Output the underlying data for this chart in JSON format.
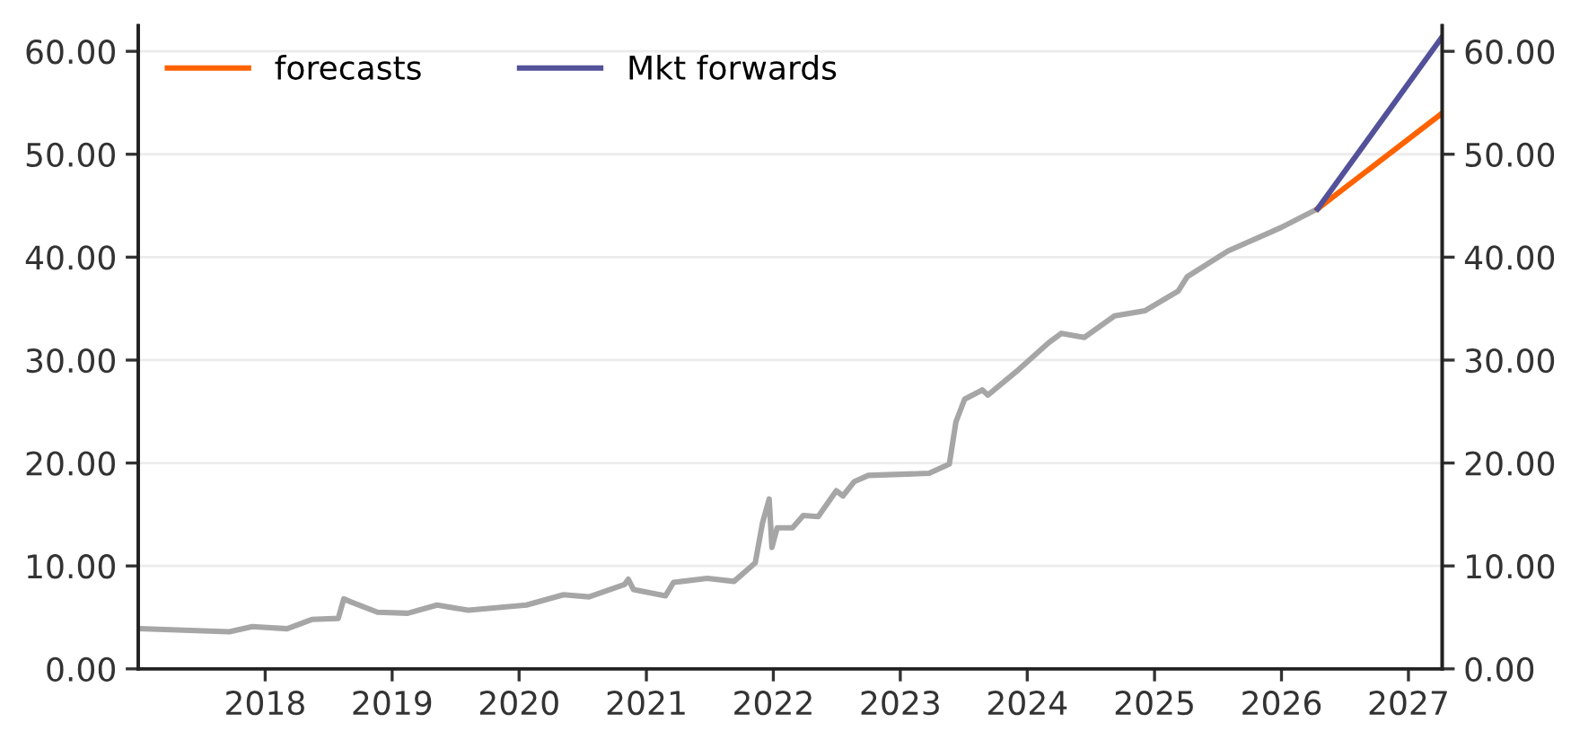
{
  "chart_data": {
    "type": "line",
    "xlim": [
      "2017-01-01",
      "2027-04-08"
    ],
    "xticks": [
      {
        "value": "2018-01-01",
        "label": "2018"
      },
      {
        "value": "2019-01-01",
        "label": "2019"
      },
      {
        "value": "2020-01-01",
        "label": "2020"
      },
      {
        "value": "2021-01-01",
        "label": "2021"
      },
      {
        "value": "2022-01-01",
        "label": "2022"
      },
      {
        "value": "2023-01-01",
        "label": "2023"
      },
      {
        "value": "2024-01-01",
        "label": "2024"
      },
      {
        "value": "2025-01-01",
        "label": "2025"
      },
      {
        "value": "2026-01-01",
        "label": "2026"
      },
      {
        "value": "2027-01-01",
        "label": "2027"
      }
    ],
    "ylim": [
      0,
      62.5
    ],
    "yticks": [
      {
        "value": 0,
        "label": "0.00"
      },
      {
        "value": 10,
        "label": "10.00"
      },
      {
        "value": 20,
        "label": "20.00"
      },
      {
        "value": 30,
        "label": "30.00"
      },
      {
        "value": 40,
        "label": "40.00"
      },
      {
        "value": 50,
        "label": "50.00"
      },
      {
        "value": 60,
        "label": "60.00"
      }
    ],
    "y2lim": [
      0,
      62.5
    ],
    "y2ticks": [
      {
        "value": 0,
        "label": "0.00"
      },
      {
        "value": 10,
        "label": "10.00"
      },
      {
        "value": 20,
        "label": "20.00"
      },
      {
        "value": 30,
        "label": "30.00"
      },
      {
        "value": 40,
        "label": "40.00"
      },
      {
        "value": 50,
        "label": "50.00"
      },
      {
        "value": 60,
        "label": "60.00"
      }
    ],
    "grid": "y",
    "legend": "top left",
    "series": [
      {
        "color": "#a6a6a6",
        "x": [
          "2017-01-05",
          "2017-09-20",
          "2017-11-25",
          "2018-03-05",
          "2018-05-15",
          "2018-07-30",
          "2018-08-15",
          "2018-09-05",
          "2018-11-20",
          "2019-02-15",
          "2019-05-10",
          "2019-08-08",
          "2020-01-22",
          "2020-05-08",
          "2020-07-20",
          "2020-10-30",
          "2020-11-10",
          "2020-11-25",
          "2021-02-25",
          "2021-03-20",
          "2021-06-25",
          "2021-09-10",
          "2021-11-10",
          "2021-12-01",
          "2021-12-20",
          "2021-12-28",
          "2022-01-12",
          "2022-02-25",
          "2022-03-28",
          "2022-05-10",
          "2022-07-01",
          "2022-07-20",
          "2022-08-22",
          "2022-10-01",
          "2023-03-25",
          "2023-05-22",
          "2023-06-10",
          "2023-07-05",
          "2023-08-25",
          "2023-09-10",
          "2023-12-08",
          "2024-03-03",
          "2024-04-08",
          "2024-06-13",
          "2024-09-08",
          "2024-12-05",
          "2025-03-10",
          "2025-04-05",
          "2025-07-31",
          "2026-01-01",
          "2026-04-15"
        ],
        "values": [
          3.9,
          3.6,
          4.1,
          3.9,
          4.8,
          4.9,
          6.8,
          6.5,
          5.5,
          5.4,
          6.2,
          5.7,
          6.2,
          7.2,
          7.0,
          8.2,
          8.7,
          7.7,
          7.1,
          8.4,
          8.8,
          8.5,
          10.3,
          14.2,
          16.5,
          11.8,
          13.7,
          13.7,
          14.9,
          14.8,
          17.3,
          16.8,
          18.2,
          18.8,
          19.0,
          19.9,
          24.0,
          26.2,
          27.1,
          26.6,
          29.1,
          31.7,
          32.6,
          32.2,
          34.3,
          34.8,
          36.7,
          38.1,
          40.6,
          42.9,
          44.7
        ]
      },
      {
        "name": "forecasts",
        "color": "#ff6200",
        "x": [
          "2026-04-15",
          "2027-04-08"
        ],
        "values": [
          44.7,
          54.0
        ]
      },
      {
        "name": "Mkt forwards",
        "color": "#525199",
        "x": [
          "2026-04-15",
          "2027-04-08"
        ],
        "values": [
          44.7,
          61.4
        ]
      }
    ]
  }
}
